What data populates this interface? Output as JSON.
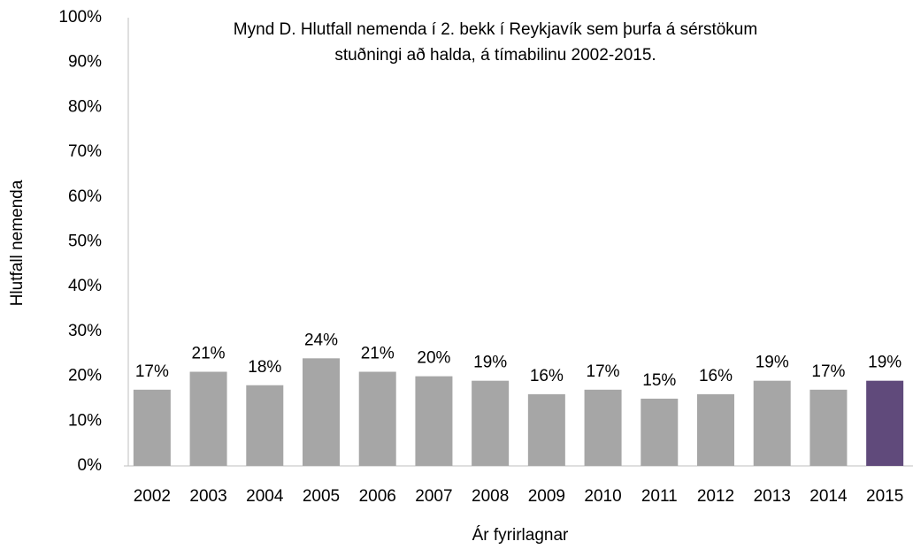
{
  "chart_data": {
    "type": "bar",
    "title": [
      "Mynd D. Hlutfall nemenda í 2. bekk í Reykjavík sem þurfa á sérstökum",
      "stuðningi að halda, á tímabilinu 2002-2015."
    ],
    "x_label": "Ár fyrirlagnar",
    "y_label": "Hlutfall nemenda",
    "categories": [
      "2002",
      "2003",
      "2004",
      "2005",
      "2006",
      "2007",
      "2008",
      "2009",
      "2010",
      "2011",
      "2012",
      "2013",
      "2014",
      "2015"
    ],
    "values": [
      17,
      21,
      18,
      24,
      21,
      20,
      19,
      16,
      17,
      15,
      16,
      19,
      17,
      19
    ],
    "value_labels": [
      "17%",
      "21%",
      "18%",
      "24%",
      "21%",
      "20%",
      "19%",
      "16%",
      "17%",
      "15%",
      "16%",
      "19%",
      "17%",
      "19%"
    ],
    "colors": [
      "#a6a6a6",
      "#a6a6a6",
      "#a6a6a6",
      "#a6a6a6",
      "#a6a6a6",
      "#a6a6a6",
      "#a6a6a6",
      "#a6a6a6",
      "#a6a6a6",
      "#a6a6a6",
      "#a6a6a6",
      "#a6a6a6",
      "#a6a6a6",
      "#604a7b"
    ],
    "ylim": [
      0,
      100
    ],
    "yticks": [
      {
        "value": 0,
        "label": "0%"
      },
      {
        "value": 10,
        "label": "10%"
      },
      {
        "value": 20,
        "label": "20%"
      },
      {
        "value": 30,
        "label": "30%"
      },
      {
        "value": 40,
        "label": "40%"
      },
      {
        "value": 50,
        "label": "50%"
      },
      {
        "value": 60,
        "label": "60%"
      },
      {
        "value": 70,
        "label": "70%"
      },
      {
        "value": 80,
        "label": "80%"
      },
      {
        "value": 90,
        "label": "90%"
      },
      {
        "value": 100,
        "label": "100%"
      }
    ],
    "grid": false
  }
}
